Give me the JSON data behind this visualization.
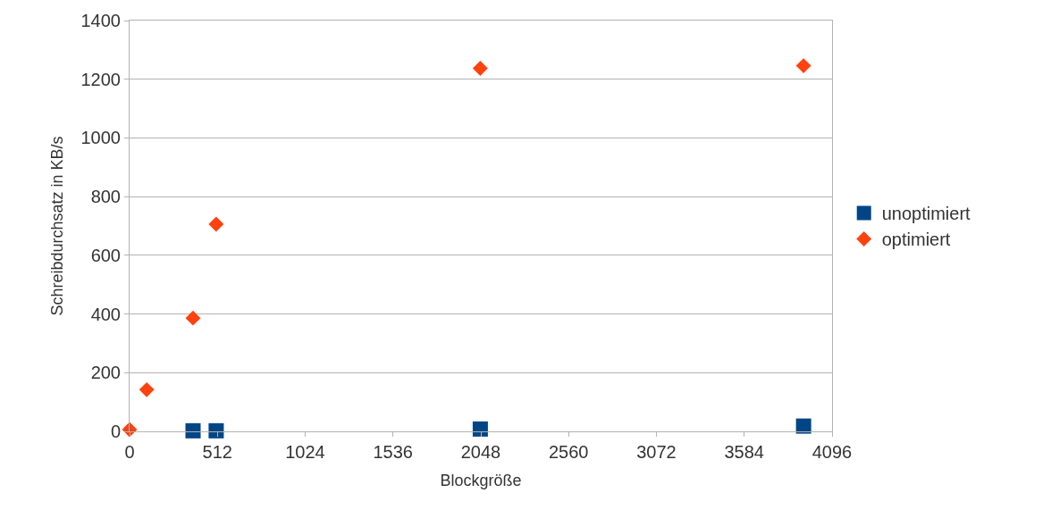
{
  "chart_data": {
    "type": "scatter",
    "xlabel": "Blockgröße",
    "ylabel": "Schreibdurchsatz in KB/s",
    "series": [
      {
        "name": "unoptimiert",
        "color": "#004586",
        "marker": "square",
        "x": [
          370,
          505,
          2045,
          3930
        ],
        "values": [
          2,
          2,
          8,
          18
        ]
      },
      {
        "name": "optimiert",
        "color": "#ff420e",
        "marker": "diamond",
        "x": [
          0,
          100,
          370,
          505,
          2045,
          3930
        ],
        "values": [
          6,
          142,
          386,
          706,
          1237,
          1246
        ]
      }
    ],
    "xlim": [
      0,
      4096
    ],
    "xticks": [
      0,
      512,
      1024,
      1536,
      2048,
      2560,
      3072,
      3584,
      4096
    ],
    "ylim": [
      0,
      1400
    ],
    "yticks": [
      0,
      200,
      400,
      600,
      800,
      1000,
      1200,
      1400
    ],
    "grid": "y",
    "legend": "right"
  }
}
